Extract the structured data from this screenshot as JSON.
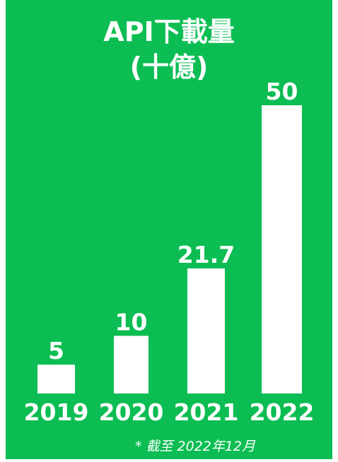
{
  "colors": {
    "background": "#0bbd52",
    "bar": "#ffffff",
    "text": "#ffffff"
  },
  "chart_data": {
    "type": "bar",
    "title": [
      "API下載量",
      "(十億)"
    ],
    "categories": [
      "2019",
      "2020",
      "2021",
      "2022"
    ],
    "values": [
      5,
      10,
      21.7,
      50
    ],
    "value_labels": [
      "5",
      "10",
      "21.7",
      "50"
    ],
    "xlabel": "",
    "ylabel": "",
    "ylim": [
      0,
      50
    ],
    "grid": false,
    "legend": "none",
    "note": "* 截至 2022年12月"
  }
}
